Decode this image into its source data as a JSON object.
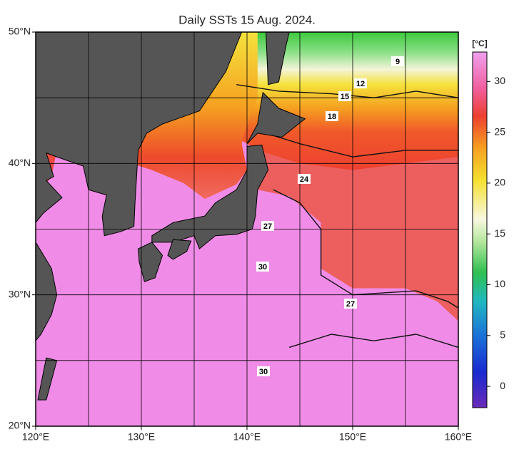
{
  "map": {
    "title": "Daily SSTs 15 Aug. 2024.",
    "lat_ticks": [
      {
        "value": 20,
        "label": "20°N"
      },
      {
        "value": 30,
        "label": "30°N"
      },
      {
        "value": 40,
        "label": "40°N"
      },
      {
        "value": 50,
        "label": "50°N"
      }
    ],
    "lon_ticks": [
      {
        "value": 120,
        "label": "120°E"
      },
      {
        "value": 130,
        "label": "130°E"
      },
      {
        "value": 140,
        "label": "140°E"
      },
      {
        "value": 150,
        "label": "150°E"
      },
      {
        "value": 160,
        "label": "160°E"
      }
    ],
    "colorbar": {
      "unit": "[°C]",
      "range": [
        -2.1,
        32.9
      ],
      "ticks": [
        0,
        5,
        10,
        15,
        20,
        25,
        30
      ]
    },
    "contour_labels": [
      9,
      12,
      15,
      18,
      24,
      27,
      30,
      27,
      30
    ]
  }
}
